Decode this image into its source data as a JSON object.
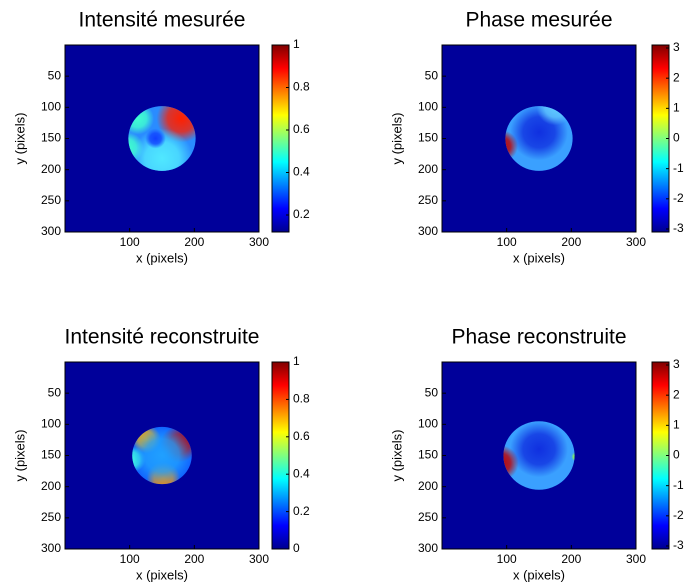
{
  "chart_data": [
    {
      "type": "heatmap",
      "title": "Intensité mesurée",
      "xlabel": "x (pixels)",
      "ylabel": "y (pixels)",
      "xlim": [
        0,
        300
      ],
      "ylim": [
        0,
        300
      ],
      "xticks": [
        100,
        200,
        300
      ],
      "yticks": [
        50,
        100,
        150,
        200,
        250,
        300
      ],
      "clim": [
        0.12,
        1
      ],
      "cticks": [
        0.2,
        0.4,
        0.6,
        0.8,
        1
      ]
    },
    {
      "type": "heatmap",
      "title": "Phase mesurée",
      "xlabel": "x (pixels)",
      "ylabel": "y (pixels)",
      "xlim": [
        0,
        300
      ],
      "ylim": [
        0,
        300
      ],
      "xticks": [
        100,
        200,
        300
      ],
      "yticks": [
        50,
        100,
        150,
        200,
        250,
        300
      ],
      "clim": [
        -3.1,
        3.1
      ],
      "cticks": [
        -3,
        -2,
        -1,
        0,
        1,
        2,
        3
      ]
    },
    {
      "type": "heatmap",
      "title": "Intensité reconstruite",
      "xlabel": "x (pixels)",
      "ylabel": "y (pixels)",
      "xlim": [
        0,
        300
      ],
      "ylim": [
        0,
        300
      ],
      "xticks": [
        100,
        200,
        300
      ],
      "yticks": [
        50,
        100,
        150,
        200,
        250,
        300
      ],
      "clim": [
        0,
        1
      ],
      "cticks": [
        0,
        0.2,
        0.4,
        0.6,
        0.8,
        1
      ]
    },
    {
      "type": "heatmap",
      "title": "Phase reconstruite",
      "xlabel": "x (pixels)",
      "ylabel": "y (pixels)",
      "xlim": [
        0,
        300
      ],
      "ylim": [
        0,
        300
      ],
      "xticks": [
        100,
        200,
        300
      ],
      "yticks": [
        50,
        100,
        150,
        200,
        250,
        300
      ],
      "clim": [
        -3.1,
        3.1
      ],
      "cticks": [
        -3,
        -2,
        -1,
        0,
        1,
        2,
        3
      ]
    }
  ]
}
